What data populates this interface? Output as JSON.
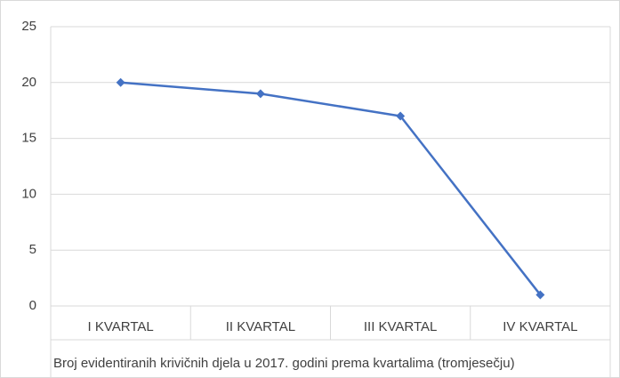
{
  "chart_data": {
    "type": "line",
    "categories": [
      "I KVARTAL",
      "II KVARTAL",
      "III KVARTAL",
      "IV KVARTAL"
    ],
    "series": [
      {
        "name": "Broj evidentiranih krivičnih djela u 2017. godini prema kvartalima (tromjesečju)",
        "color": "#4472c4",
        "values": [
          20,
          19,
          17,
          1
        ]
      }
    ],
    "ylim": [
      0,
      25
    ],
    "yticks": [
      0,
      5,
      10,
      15,
      20,
      25
    ],
    "grid": true
  }
}
